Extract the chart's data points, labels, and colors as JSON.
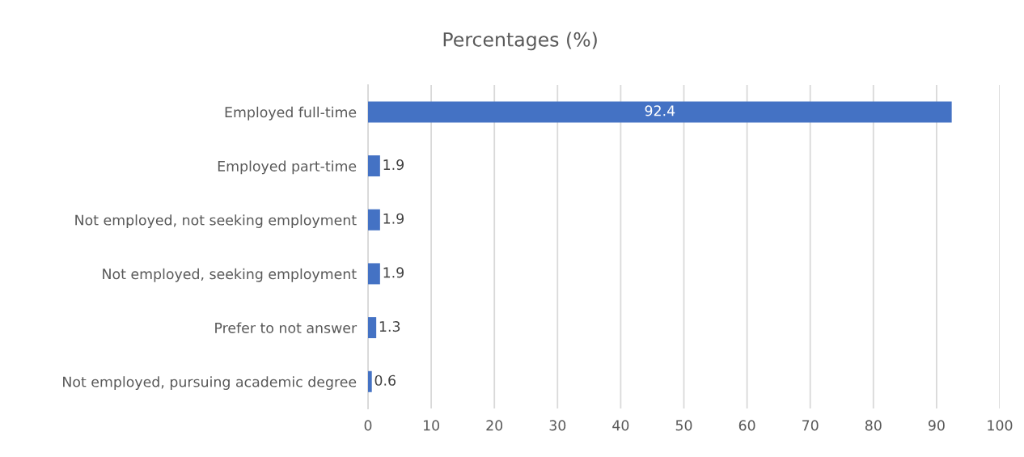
{
  "chart_data": {
    "type": "bar",
    "orientation": "horizontal",
    "title": "Percentages (%)",
    "categories": [
      "Employed full-time",
      "Employed part-time",
      "Not employed, not seeking employment",
      "Not employed, seeking employment",
      "Prefer to not answer",
      "Not employed, pursuing academic degree"
    ],
    "values": [
      92.4,
      1.9,
      1.9,
      1.9,
      1.3,
      0.6
    ],
    "color": "#4472c4",
    "xlim": [
      0,
      100
    ],
    "xticks": [
      0,
      10,
      20,
      30,
      40,
      50,
      60,
      70,
      80,
      90,
      100
    ],
    "grid": "x",
    "data_labels": true,
    "legend": false
  }
}
